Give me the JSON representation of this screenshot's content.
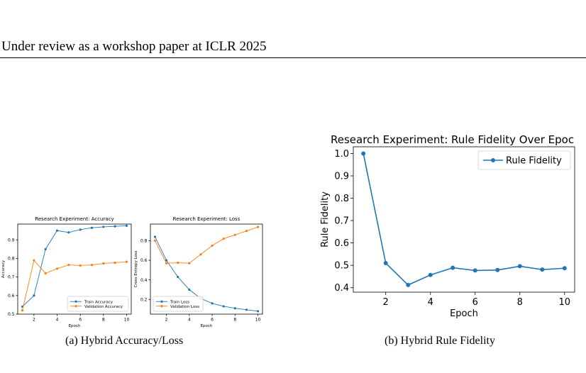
{
  "page": {
    "header": "Under review as a workshop paper at ICLR 2025",
    "caption_a": "(a)  Hybrid Accuracy/Loss",
    "caption_b": "(b)  Hybrid Rule Fidelity"
  },
  "chart_data": [
    {
      "type": "line",
      "title": "Research Experiment: Accuracy",
      "xlabel": "Epoch",
      "ylabel": "Accuracy",
      "xlim": [
        0.6,
        10.4
      ],
      "ylim": [
        0.5,
        0.985
      ],
      "xticks": [
        2,
        4,
        6,
        8,
        10
      ],
      "yticks": [
        0.5,
        0.6,
        0.7,
        0.8,
        0.9
      ],
      "grid": false,
      "legend": "lower-right",
      "x": [
        1,
        2,
        3,
        4,
        5,
        6,
        7,
        8,
        9,
        10
      ],
      "series": [
        {
          "name": "Train Accuracy",
          "color": "#1f77b4",
          "values": [
            0.54,
            0.6,
            0.85,
            0.95,
            0.94,
            0.955,
            0.965,
            0.97,
            0.973,
            0.976
          ]
        },
        {
          "name": "Validation Accuracy",
          "color": "#ff7f0e",
          "values": [
            0.52,
            0.79,
            0.72,
            0.745,
            0.765,
            0.762,
            0.765,
            0.773,
            0.777,
            0.782
          ]
        }
      ]
    },
    {
      "type": "line",
      "title": "Research Experiment: Loss",
      "xlabel": "Epoch",
      "ylabel": "Cross Entropy Loss",
      "xlim": [
        0.6,
        10.4
      ],
      "ylim": [
        0.05,
        0.97
      ],
      "xticks": [
        2,
        4,
        6,
        8,
        10
      ],
      "yticks": [
        0.2,
        0.4,
        0.6,
        0.8
      ],
      "grid": false,
      "legend": "lower-left",
      "x": [
        1,
        2,
        3,
        4,
        5,
        6,
        7,
        8,
        9,
        10
      ],
      "series": [
        {
          "name": "Train Loss",
          "color": "#1f77b4",
          "values": [
            0.84,
            0.6,
            0.43,
            0.3,
            0.21,
            0.16,
            0.13,
            0.11,
            0.095,
            0.08
          ]
        },
        {
          "name": "Validation Loss",
          "color": "#ff7f0e",
          "values": [
            0.8,
            0.57,
            0.575,
            0.57,
            0.66,
            0.75,
            0.82,
            0.86,
            0.9,
            0.94
          ]
        }
      ]
    },
    {
      "type": "line",
      "title": "Research Experiment: Rule Fidelity Over Epoc",
      "xlabel": "Epoch",
      "ylabel": "Rule Fidelity",
      "xlim": [
        0.55,
        10.45
      ],
      "ylim": [
        0.38,
        1.03
      ],
      "xticks": [
        2,
        4,
        6,
        8,
        10
      ],
      "yticks": [
        0.4,
        0.5,
        0.6,
        0.7,
        0.8,
        0.9,
        1.0
      ],
      "ytick_labels": [
        "0.4",
        "0.5",
        "0.6",
        "0.7",
        "0.8",
        "0.9",
        "1.0"
      ],
      "grid": false,
      "legend": "top-right",
      "x": [
        1,
        2,
        3,
        4,
        5,
        6,
        7,
        8,
        9,
        10
      ],
      "series": [
        {
          "name": "Rule Fidelity",
          "color": "#1f77b4",
          "values": [
            1.0,
            0.51,
            0.412,
            0.457,
            0.489,
            0.477,
            0.479,
            0.496,
            0.481,
            0.487
          ]
        }
      ]
    }
  ]
}
